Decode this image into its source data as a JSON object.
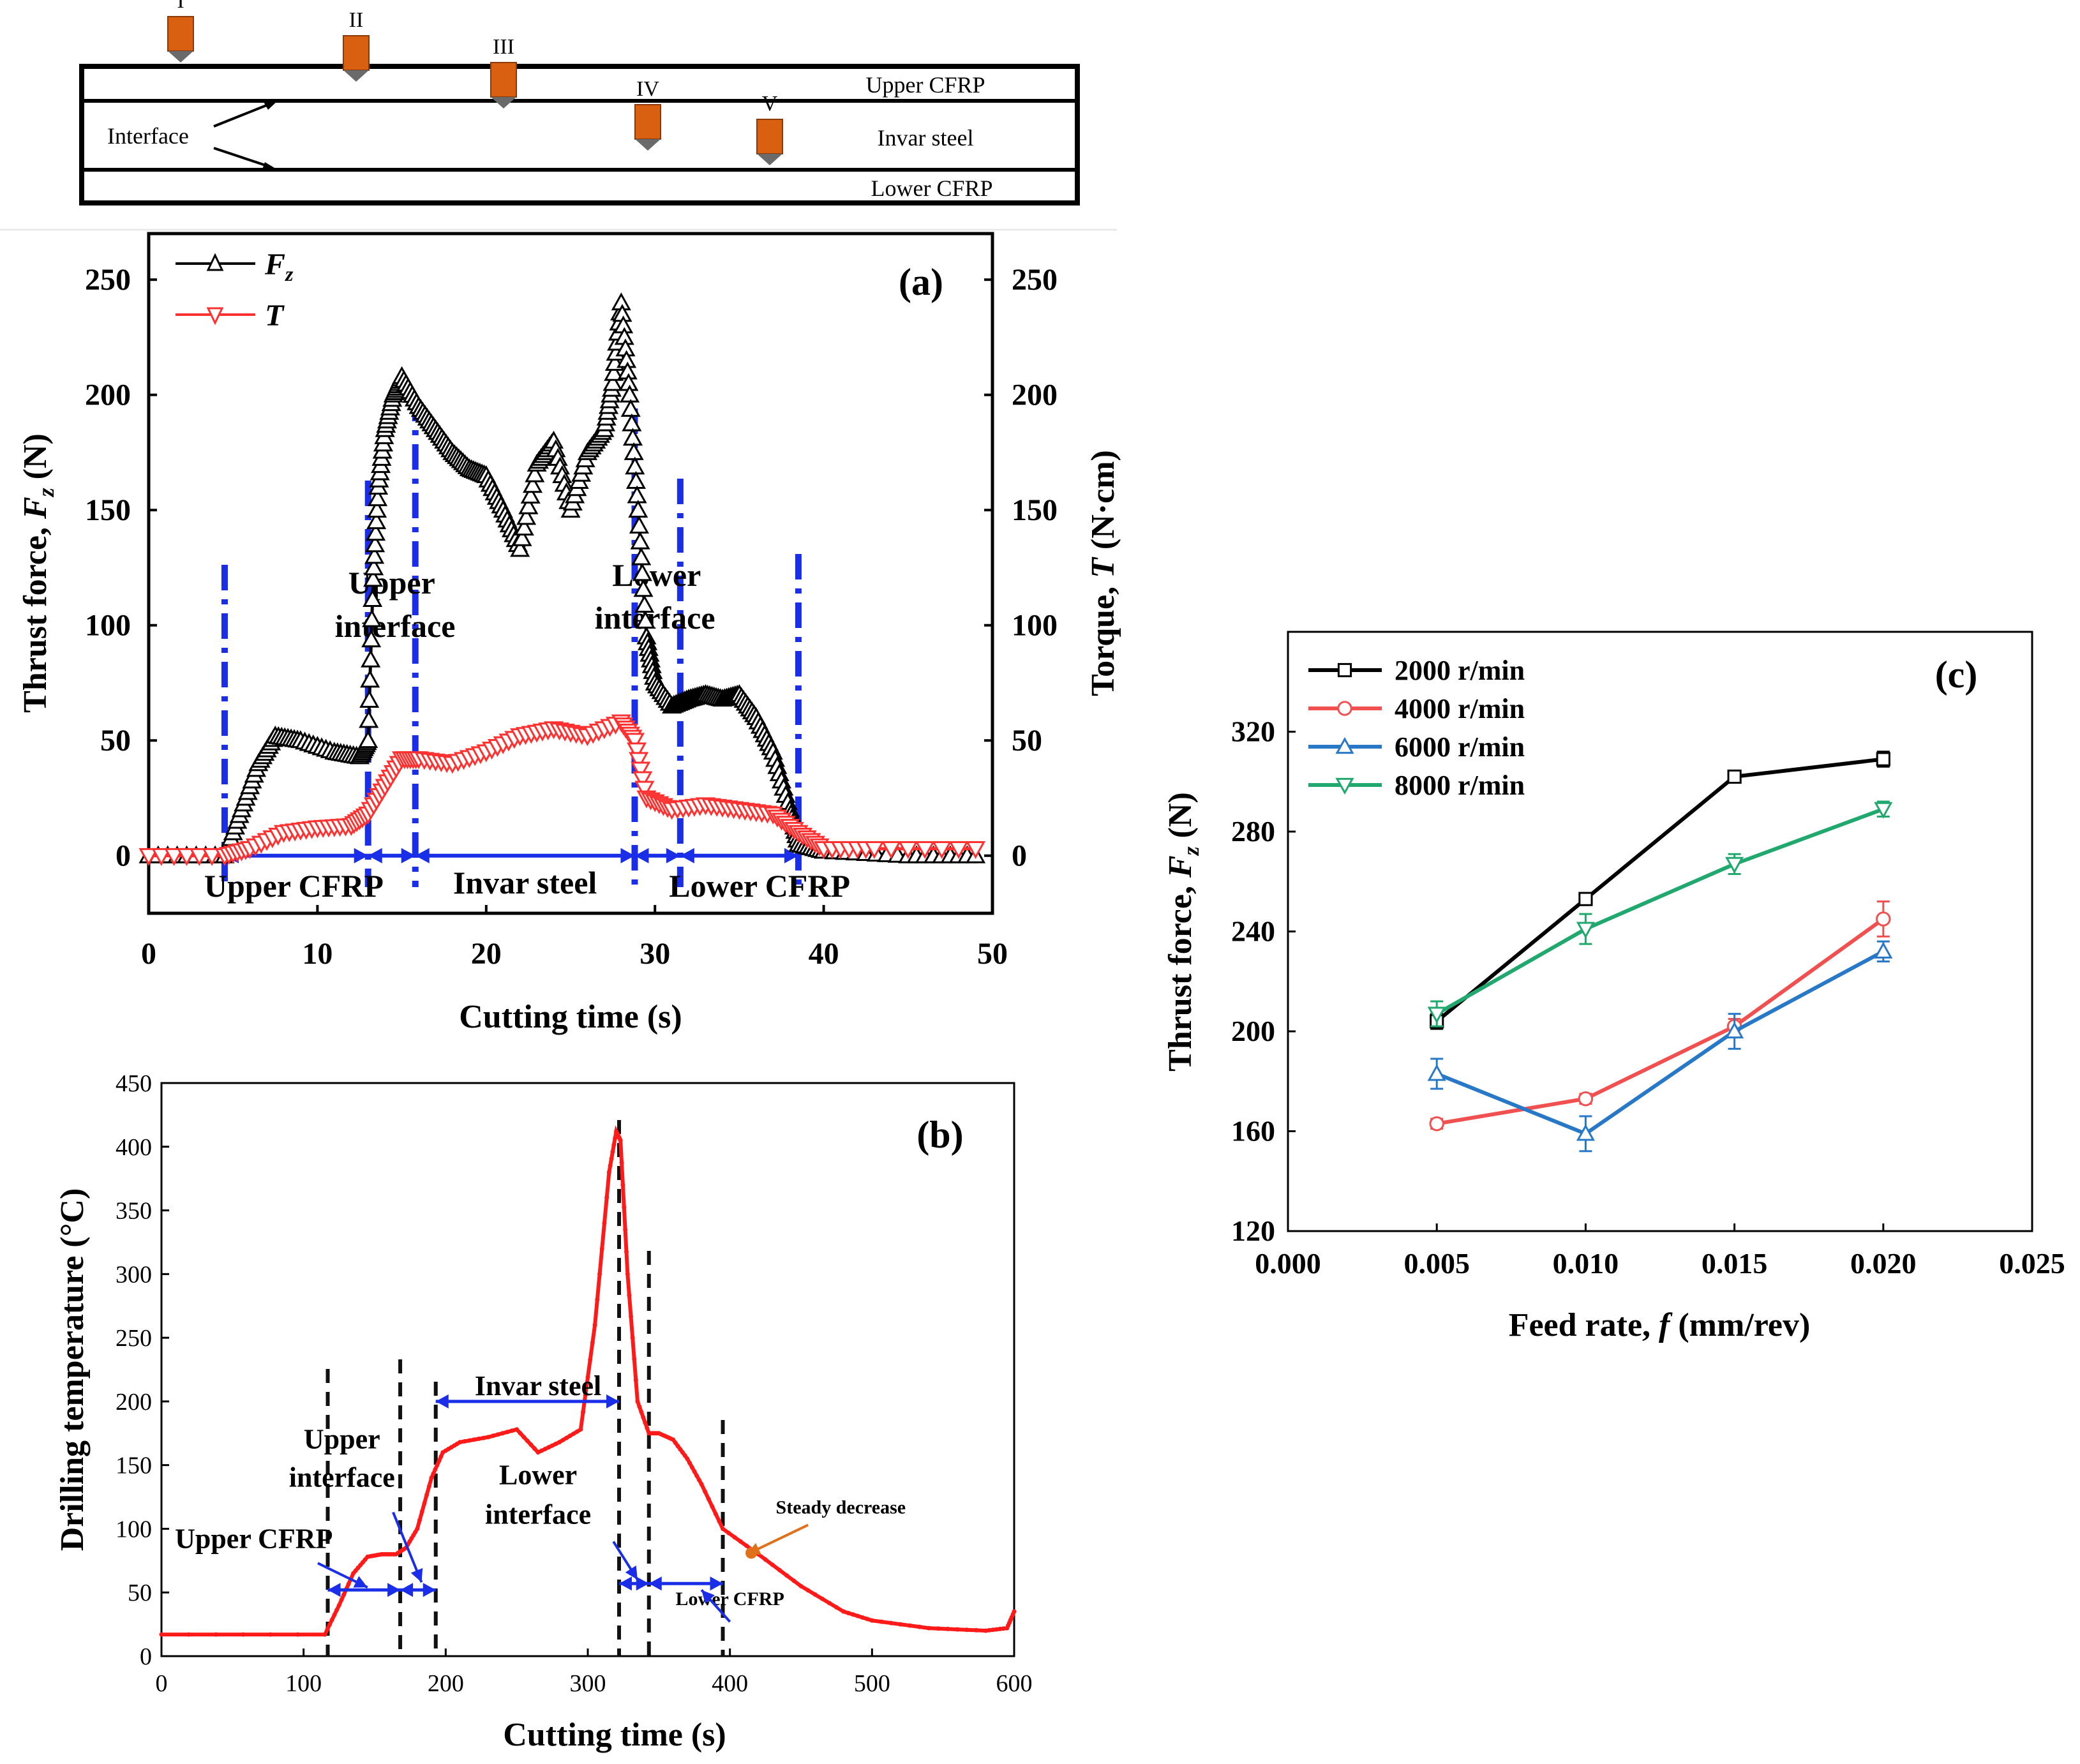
{
  "schematic": {
    "layers": [
      "Upper CFRP",
      "Invar steel",
      "Lower CFRP"
    ],
    "interface_label": "Interface",
    "positions": [
      "I",
      "II",
      "III",
      "IV",
      "V"
    ]
  },
  "chart_data": [
    {
      "id": "a",
      "type": "line",
      "panel_label": "(a)",
      "xlabel": "Cutting time (s)",
      "ylabel_left": "Thrust force, F_z (N)",
      "ylabel_right": "Torque, T (N·cm)",
      "xlim": [
        0,
        50
      ],
      "ylim": [
        -25,
        270
      ],
      "x_ticks": [
        0,
        10,
        20,
        30,
        40,
        50
      ],
      "y_ticks": [
        0,
        50,
        100,
        150,
        200,
        250
      ],
      "legend": [
        "F_z",
        "T"
      ],
      "boundaries": [
        4.5,
        13.0,
        15.8,
        28.8,
        31.5,
        38.5
      ],
      "region_labels": [
        "Upper CFRP",
        "Invar steel",
        "Lower CFRP"
      ],
      "interface_labels": [
        [
          "Upper",
          "interface"
        ],
        [
          "Lower",
          "interface"
        ]
      ],
      "series": [
        {
          "name": "F_z",
          "color": "#000000",
          "marker": "triangle-up",
          "x": [
            0,
            4.5,
            5.5,
            6.5,
            7.5,
            9,
            11,
            12.5,
            13,
            13.3,
            13.6,
            14,
            14.5,
            15,
            16,
            17,
            18,
            19,
            20,
            21,
            22,
            23,
            24,
            25,
            26,
            27,
            27.5,
            28,
            28.5,
            29,
            29.5,
            30,
            31,
            32,
            33,
            34,
            35,
            36,
            37,
            38,
            38.5,
            40,
            45,
            49
          ],
          "y": [
            0,
            0,
            20,
            40,
            52,
            50,
            45,
            43,
            50,
            120,
            160,
            185,
            200,
            208,
            195,
            185,
            175,
            168,
            165,
            150,
            133,
            170,
            180,
            150,
            175,
            185,
            205,
            240,
            200,
            150,
            95,
            75,
            65,
            68,
            70,
            68,
            70,
            60,
            45,
            20,
            5,
            2,
            0,
            0
          ]
        },
        {
          "name": "T",
          "color": "#ff3030",
          "marker": "triangle-down",
          "x": [
            0,
            4.5,
            6,
            8,
            10,
            12,
            13,
            14,
            15,
            16,
            18,
            20,
            22,
            24,
            26,
            28,
            28.8,
            29.5,
            31,
            33,
            35,
            37,
            38.5,
            40,
            43,
            49
          ],
          "y": [
            0,
            0,
            3,
            10,
            12,
            13,
            18,
            30,
            42,
            42,
            40,
            45,
            52,
            55,
            52,
            58,
            50,
            25,
            20,
            22,
            20,
            18,
            10,
            3,
            3,
            3
          ]
        }
      ]
    },
    {
      "id": "b",
      "type": "line",
      "panel_label": "(b)",
      "xlabel": "Cutting time (s)",
      "ylabel": "Drilling temperature (°C)",
      "xlim": [
        0,
        600
      ],
      "ylim": [
        0,
        450
      ],
      "x_ticks": [
        0,
        100,
        200,
        300,
        400,
        500,
        600
      ],
      "y_ticks": [
        0,
        50,
        100,
        150,
        200,
        250,
        300,
        350,
        400,
        450
      ],
      "boundaries": [
        117,
        168,
        193,
        322,
        343,
        395
      ],
      "annotations": [
        "Invar steel",
        "Upper interface",
        "Upper CFRP",
        "Lower interface",
        "Lower CFRP",
        "Steady decrease"
      ],
      "annotation_lines": {
        "upper_interface": [
          "Upper",
          "interface"
        ],
        "lower_interface": [
          "Lower",
          "interface"
        ]
      },
      "series": [
        {
          "color": "#ff1a1a",
          "x": [
            0,
            115,
            125,
            135,
            145,
            155,
            165,
            172,
            180,
            190,
            198,
            210,
            230,
            250,
            265,
            280,
            295,
            305,
            315,
            320,
            323,
            328,
            335,
            343,
            350,
            360,
            370,
            380,
            395,
            420,
            450,
            480,
            500,
            540,
            580,
            595,
            600
          ],
          "y": [
            17,
            17,
            40,
            65,
            78,
            80,
            80,
            85,
            100,
            140,
            160,
            168,
            172,
            178,
            160,
            168,
            178,
            260,
            380,
            412,
            405,
            300,
            200,
            175,
            175,
            170,
            155,
            135,
            100,
            80,
            55,
            35,
            28,
            22,
            20,
            22,
            35
          ]
        }
      ]
    },
    {
      "id": "c",
      "type": "line",
      "panel_label": "(c)",
      "xlabel": "Feed rate, f (mm/rev)",
      "ylabel": "Thrust force, F_z (N)",
      "xlim": [
        0,
        0.025
      ],
      "ylim": [
        120,
        360
      ],
      "x_ticks": [
        "0.000",
        "0.005",
        "0.010",
        "0.015",
        "0.020",
        "0.025"
      ],
      "y_ticks": [
        120,
        160,
        200,
        240,
        280,
        320
      ],
      "categories": [
        0.005,
        0.01,
        0.015,
        0.02
      ],
      "series": [
        {
          "name": "2000 r/min",
          "color": "#000000",
          "marker": "square",
          "values": [
            204,
            253,
            302,
            309
          ],
          "errors": [
            3,
            2,
            2,
            3
          ]
        },
        {
          "name": "4000 r/min",
          "color": "#f05050",
          "marker": "circle",
          "values": [
            163,
            173,
            202,
            245
          ],
          "errors": [
            2,
            2,
            3,
            7
          ]
        },
        {
          "name": "6000 r/min",
          "color": "#2878c8",
          "marker": "triangle-up",
          "values": [
            183,
            159,
            200,
            232
          ],
          "errors": [
            6,
            7,
            7,
            4
          ]
        },
        {
          "name": "8000 r/min",
          "color": "#20a86e",
          "marker": "triangle-down",
          "values": [
            207,
            241,
            267,
            289
          ],
          "errors": [
            5,
            6,
            4,
            3
          ]
        }
      ]
    }
  ]
}
